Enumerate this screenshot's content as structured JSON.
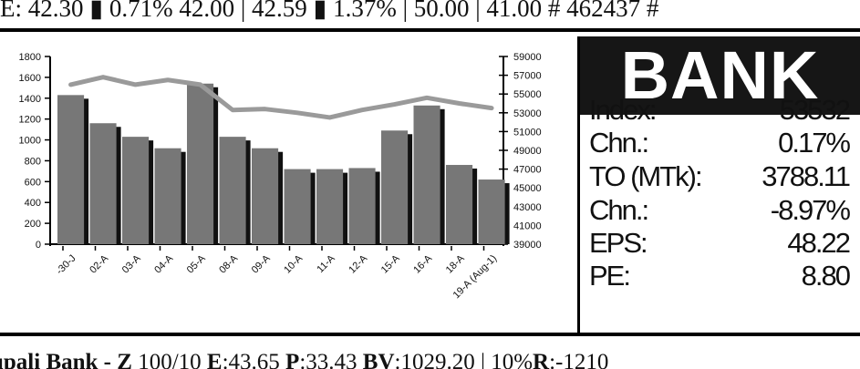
{
  "ticker_top": "E: 42.30 ▮ 0.71%  42.00 | 42.59 ▮ 1.37% | 50.00 | 41.00  # 462437 #",
  "sector": {
    "title": "BANK",
    "stats": [
      {
        "label": "Index:",
        "value": "53532"
      },
      {
        "label": "Chn.:",
        "value": "0.17%"
      },
      {
        "label": "TO (MTk):",
        "value": "3788.11"
      },
      {
        "label": "Chn.:",
        "value": "-8.97%"
      },
      {
        "label": "EPS:",
        "value": "48.22"
      },
      {
        "label": "PE:",
        "value": "8.80"
      }
    ]
  },
  "chart_data": {
    "type": "bar",
    "categories": [
      "-30-J",
      "02-A",
      "03-A",
      "04-A",
      "05-A",
      "08-A",
      "09-A",
      "10-A",
      "11-A",
      "12-A",
      "15-A",
      "16-A",
      "18-A",
      "19-A (Aug-1)"
    ],
    "series": [
      {
        "type": "bar",
        "axis": "left",
        "values": [
          1430,
          1160,
          1030,
          920,
          1540,
          1030,
          920,
          720,
          720,
          730,
          1090,
          1330,
          760,
          620
        ]
      },
      {
        "type": "line",
        "axis": "right",
        "values": [
          56000,
          56800,
          56000,
          56500,
          56000,
          53300,
          53400,
          53000,
          52500,
          53300,
          53900,
          54600,
          54000,
          53500
        ]
      }
    ],
    "left_axis": {
      "min": 0,
      "max": 1800,
      "ticks": [
        "0",
        "200",
        "400",
        "600",
        "800",
        "1000",
        "1200",
        "1400",
        "1600",
        "1800"
      ]
    },
    "right_axis": {
      "min": 39000,
      "max": 59000,
      "ticks": [
        "39000",
        "41000",
        "43000",
        "45000",
        "47000",
        "49000",
        "51000",
        "53000",
        "55000",
        "57000",
        "59000"
      ]
    },
    "grid": false
  },
  "ticker_bottom": {
    "name": "upali Bank - Z",
    "text1": " 100/10 ",
    "e_label": "E",
    "e_value": ":43.65 ",
    "p_label": "P",
    "p_value": ":33.43 ",
    "bv_label": "BV",
    "bv_value": ":1029.20 | 10%",
    "r_label": "R",
    "r_value": ":-1210"
  }
}
